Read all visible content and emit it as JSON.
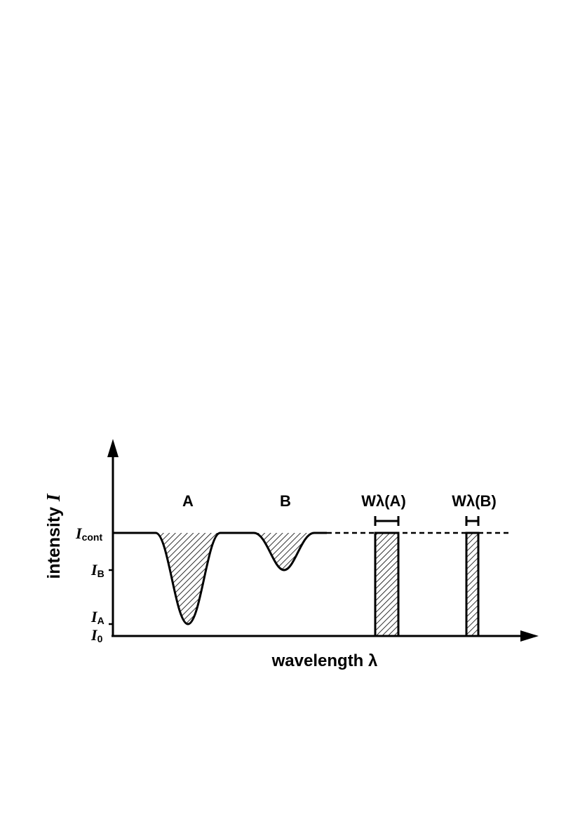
{
  "diagram": {
    "axes": {
      "y_label_text": "intensity",
      "y_label_symbol": "I",
      "x_label": "wavelength λ"
    },
    "y_ticks": {
      "cont": {
        "sym": "I",
        "sub": "cont"
      },
      "b": {
        "sym": "I",
        "sub": "B"
      },
      "a": {
        "sym": "I",
        "sub": "A"
      },
      "zero": {
        "sym": "I",
        "sub": "0"
      }
    },
    "lines": {
      "a": "A",
      "b": "B"
    },
    "equivalent_widths": {
      "a": {
        "w": "W",
        "lambda": "λ",
        "arg": "(A)"
      },
      "b": {
        "w": "W",
        "lambda": "λ",
        "arg": "(B)"
      }
    }
  }
}
